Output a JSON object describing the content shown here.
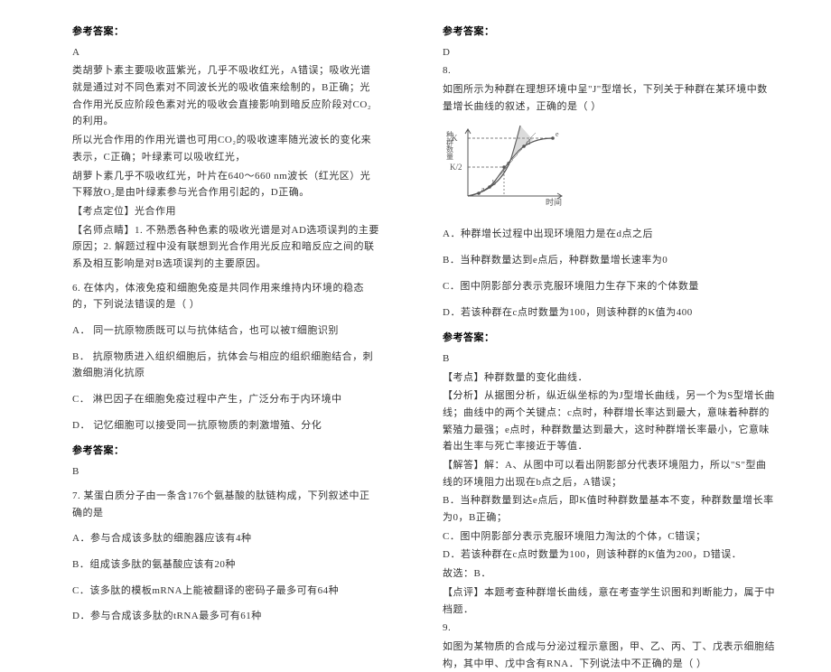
{
  "left": {
    "ans_head": "参考答案：",
    "ans_letter_a": "A",
    "para1": "类胡萝卜素主要吸收蓝紫光，几乎不吸收红光，A错误；吸收光谱就是通过对不同色素对不同波长光的吸收值来绘制的，B正确；光合作用光反应阶段色素对光的吸收会直接影响到暗反应阶段对CO₂的利用。",
    "para2": "所以光合作用的作用光谱也可用CO₂的吸收速率随光波长的变化来表示，C正确；叶绿素可以吸收红光，",
    "para3": "胡萝卜素几乎不吸收红光，叶片在640～660 nm波长（红光区）光下释放O₂是由叶绿素参与光合作用引起的，D正确。",
    "exam_pos_label": "【考点定位】光合作用",
    "teacher_label": "【名师点睛】1. 不熟悉各种色素的吸收光谱是对AD选项误判的主要原因；2. 解题过程中没有联想到光合作用光反应和暗反应之间的联系及相互影响是对B选项误判的主要原因。",
    "q6": "6. 在体内，体液免疫和细胞免疫是共同作用来维持内环境的稳态的，下列说法错误的是（      ）",
    "q6a": "A．   同一抗原物质既可以与抗体结合，也可以被T细胞识别",
    "q6b": "B．   抗原物质进入组织细胞后，抗体会与相应的组织细胞结合，刺激细胞消化抗原",
    "q6c": "C．   淋巴因子在细胞免疫过程中产生，广泛分布于内环境中",
    "q6d": "D．   记忆细胞可以接受同一抗原物质的刺激增殖、分化",
    "ans_head2": "参考答案：",
    "ans_letter_b": "B",
    "q7": "7. 某蛋白质分子由一条含176个氨基酸的肽链构成，下列叙述中正确的是",
    "q7a": "A．参与合成该多肽的细胞器应该有4种",
    "q7b": "B．组成该多肽的氨基酸应该有20种",
    "q7c": "C．该多肽的模板mRNA上能被翻译的密码子最多可有64种",
    "q7d": "D．参与合成该多肽的tRNA最多可有61种"
  },
  "right": {
    "ans_head": "参考答案：",
    "ans_d": "D",
    "q8_num": "8.",
    "q8_text": "如图所示为种群在理想环境中呈\"J\"型增长，下列关于种群在某环境中数量增长曲线的叙述，正确的是（      ）",
    "q8a": "A．种群增长过程中出现环境阻力是在d点之后",
    "q8b": "B．当种群数量达到e点后，种群数量增长速率为0",
    "q8c": "C．图中阴影部分表示克服环境阻力生存下来的个体数量",
    "q8d": "D．若该种群在c点时数量为100，则该种群的K值为400",
    "ans_head2": "参考答案：",
    "ans_b": "B",
    "exam_pt": "【考点】种群数量的变化曲线．",
    "analysis": "【分析】从据图分析，纵近纵坐标的为J型增长曲线，另一个为S型增长曲线；曲线中的两个关键点：c点时，种群增长率达到最大，意味着种群的繁殖力最强；e点时，种群数量达到最大，这时种群增长率最小，它意味着出生率与死亡率接近于等值．",
    "solve": "【解答】解：A、从图中可以看出阴影部分代表环境阻力，所以\"S\"型曲线的环境阻力出现在b点之后，A错误；",
    "solve_b": "B．当种群数量到达e点后，即K值时种群数量基本不变，种群数量增长率为0，B正确；",
    "solve_c": "C．图中阴影部分表示克服环境阻力淘汰的个体，C错误；",
    "solve_d": "D．若该种群在c点时数量为100，则该种群的K值为200，D错误．",
    "so": "故选：B．",
    "comment": "【点评】本题考查种群增长曲线，意在考查学生识图和判断能力，属于中档题．",
    "q9_num": "9.",
    "q9_text": "如图为某物质的合成与分泌过程示意图，甲、乙、丙、丁、戊表示细胞结构，其中甲、戊中含有RNA．下列说法中不正确的是（      ）",
    "graph": {
      "width": 140,
      "height": 95,
      "axis_color": "#555555",
      "curve_color": "#555555",
      "hatch_color": "#999999",
      "k_label": "K",
      "k2_label": "K/2",
      "x_label": "时间",
      "y_label": "种群数量",
      "points": [
        "a",
        "b",
        "c",
        "d",
        "e"
      ]
    }
  }
}
